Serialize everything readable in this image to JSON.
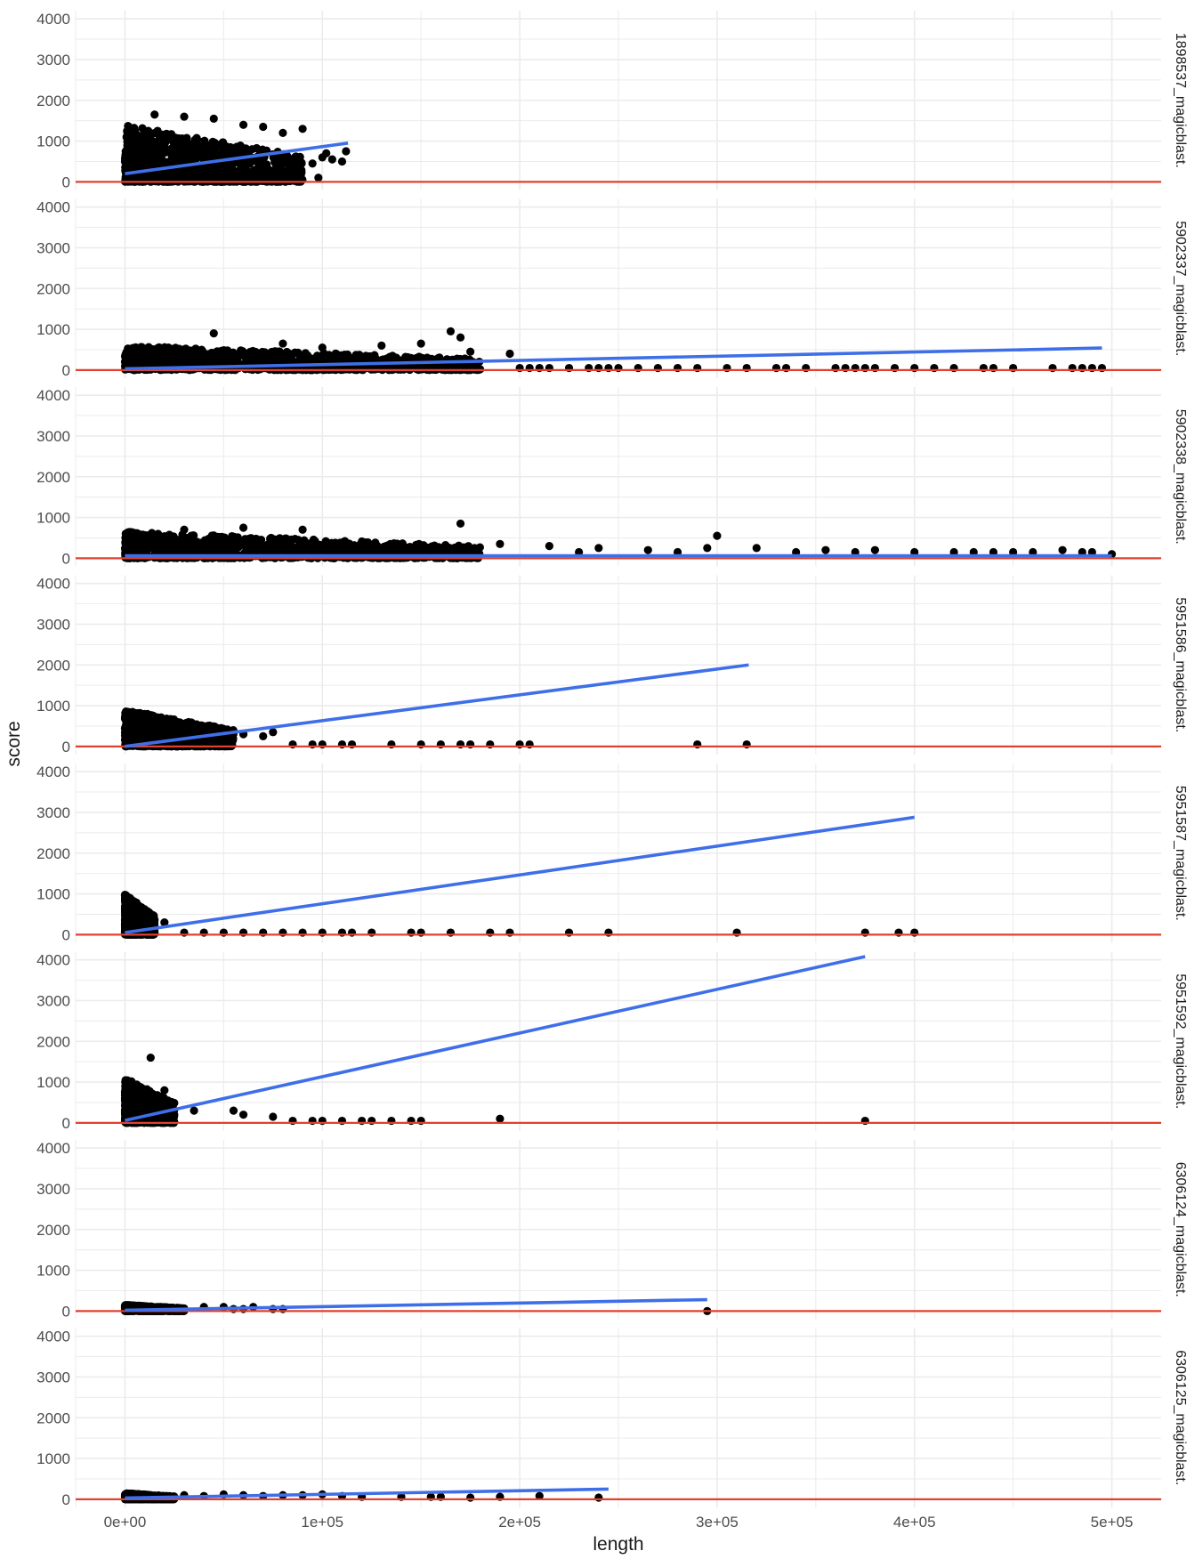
{
  "chart_data": {
    "type": "scatter",
    "xlabel": "length",
    "ylabel": "score",
    "xlim": [
      -25000,
      525000
    ],
    "ylim": [
      -200,
      4200
    ],
    "x_ticks": [
      0,
      100000,
      200000,
      300000,
      400000,
      500000
    ],
    "x_tick_labels": [
      "0e+00",
      "1e+05",
      "2e+05",
      "3e+05",
      "4e+05",
      "5e+05"
    ],
    "y_ticks": [
      0,
      1000,
      2000,
      3000,
      4000
    ],
    "y_tick_labels": [
      "0",
      "1000",
      "2000",
      "3000",
      "4000"
    ],
    "grid": true,
    "colors": {
      "points": "#000000",
      "fit_line": "#3f6fe8",
      "hline": "#e0412f",
      "grid": "#ebebeb"
    },
    "hline_y": 0,
    "panels": [
      {
        "label": "1898537_magicblast.",
        "dense_region": {
          "x": [
            0,
            90000
          ],
          "y": [
            0,
            1400
          ],
          "peak": 1600
        },
        "points": [
          [
            100000,
            600
          ],
          [
            105000,
            550
          ],
          [
            110000,
            500
          ],
          [
            112000,
            750
          ],
          [
            95000,
            450
          ],
          [
            90000,
            1300
          ],
          [
            80000,
            1200
          ],
          [
            70000,
            1350
          ],
          [
            60000,
            1400
          ],
          [
            45000,
            1550
          ],
          [
            30000,
            1600
          ],
          [
            15000,
            1650
          ],
          [
            5000,
            1250
          ],
          [
            98000,
            100
          ],
          [
            102000,
            700
          ]
        ],
        "fit": {
          "x": [
            0,
            113000
          ],
          "y": [
            200,
            950
          ]
        }
      },
      {
        "label": "5902337_magicblast.",
        "dense_region": {
          "x": [
            0,
            180000
          ],
          "y": [
            0,
            600
          ],
          "peak": 950
        },
        "points": [
          [
            45000,
            900
          ],
          [
            165000,
            950
          ],
          [
            170000,
            800
          ],
          [
            150000,
            650
          ],
          [
            130000,
            600
          ],
          [
            80000,
            650
          ],
          [
            100000,
            550
          ],
          [
            195000,
            400
          ],
          [
            175000,
            450
          ],
          [
            200000,
            50
          ],
          [
            205000,
            50
          ],
          [
            210000,
            50
          ],
          [
            215000,
            50
          ],
          [
            225000,
            50
          ],
          [
            235000,
            50
          ],
          [
            240000,
            50
          ],
          [
            245000,
            50
          ],
          [
            250000,
            50
          ],
          [
            260000,
            50
          ],
          [
            270000,
            50
          ],
          [
            280000,
            50
          ],
          [
            290000,
            50
          ],
          [
            305000,
            50
          ],
          [
            315000,
            50
          ],
          [
            330000,
            50
          ],
          [
            335000,
            50
          ],
          [
            345000,
            50
          ],
          [
            360000,
            50
          ],
          [
            365000,
            50
          ],
          [
            370000,
            50
          ],
          [
            375000,
            50
          ],
          [
            380000,
            50
          ],
          [
            390000,
            50
          ],
          [
            400000,
            50
          ],
          [
            410000,
            50
          ],
          [
            420000,
            50
          ],
          [
            435000,
            50
          ],
          [
            440000,
            50
          ],
          [
            450000,
            50
          ],
          [
            470000,
            50
          ],
          [
            480000,
            50
          ],
          [
            485000,
            50
          ],
          [
            490000,
            50
          ],
          [
            495000,
            50
          ]
        ],
        "fit": {
          "x": [
            0,
            495000
          ],
          "y": [
            30,
            540
          ]
        }
      },
      {
        "label": "5902338_magicblast.",
        "dense_region": {
          "x": [
            0,
            180000
          ],
          "y": [
            0,
            650
          ],
          "peak": 850
        },
        "points": [
          [
            170000,
            850
          ],
          [
            60000,
            750
          ],
          [
            90000,
            700
          ],
          [
            30000,
            700
          ],
          [
            300000,
            550
          ],
          [
            190000,
            350
          ],
          [
            215000,
            300
          ],
          [
            240000,
            250
          ],
          [
            265000,
            200
          ],
          [
            295000,
            250
          ],
          [
            320000,
            250
          ],
          [
            355000,
            200
          ],
          [
            380000,
            200
          ],
          [
            400000,
            150
          ],
          [
            420000,
            150
          ],
          [
            440000,
            150
          ],
          [
            460000,
            150
          ],
          [
            475000,
            200
          ],
          [
            490000,
            150
          ],
          [
            500000,
            100
          ],
          [
            230000,
            150
          ],
          [
            280000,
            150
          ],
          [
            340000,
            150
          ],
          [
            370000,
            150
          ],
          [
            430000,
            150
          ],
          [
            450000,
            150
          ],
          [
            485000,
            150
          ]
        ],
        "fit": {
          "x": [
            0,
            500000
          ],
          "y": [
            60,
            60
          ]
        }
      },
      {
        "label": "5951586_magicblast.",
        "dense_region": {
          "x": [
            0,
            55000
          ],
          "y": [
            0,
            900
          ],
          "peak": 950
        },
        "points": [
          [
            60000,
            300
          ],
          [
            70000,
            250
          ],
          [
            75000,
            350
          ],
          [
            85000,
            50
          ],
          [
            95000,
            50
          ],
          [
            100000,
            50
          ],
          [
            110000,
            50
          ],
          [
            115000,
            50
          ],
          [
            135000,
            50
          ],
          [
            150000,
            50
          ],
          [
            160000,
            50
          ],
          [
            170000,
            50
          ],
          [
            175000,
            50
          ],
          [
            185000,
            50
          ],
          [
            200000,
            50
          ],
          [
            205000,
            50
          ],
          [
            290000,
            50
          ],
          [
            315000,
            50
          ]
        ],
        "fit": {
          "x": [
            0,
            316000
          ],
          "y": [
            0,
            2000
          ]
        }
      },
      {
        "label": "5951587_magicblast.",
        "dense_region": {
          "x": [
            0,
            15000
          ],
          "y": [
            0,
            1000
          ],
          "peak": 1200
        },
        "points": [
          [
            20000,
            300
          ],
          [
            30000,
            50
          ],
          [
            40000,
            50
          ],
          [
            50000,
            50
          ],
          [
            60000,
            50
          ],
          [
            70000,
            50
          ],
          [
            80000,
            50
          ],
          [
            90000,
            50
          ],
          [
            100000,
            50
          ],
          [
            110000,
            50
          ],
          [
            115000,
            50
          ],
          [
            125000,
            50
          ],
          [
            145000,
            50
          ],
          [
            150000,
            50
          ],
          [
            165000,
            50
          ],
          [
            185000,
            50
          ],
          [
            195000,
            50
          ],
          [
            225000,
            50
          ],
          [
            245000,
            50
          ],
          [
            310000,
            50
          ],
          [
            375000,
            50
          ],
          [
            392000,
            50
          ],
          [
            400000,
            50
          ]
        ],
        "fit": {
          "x": [
            0,
            400000
          ],
          "y": [
            50,
            2880
          ]
        }
      },
      {
        "label": "5951592_magicblast.",
        "dense_region": {
          "x": [
            0,
            25000
          ],
          "y": [
            0,
            1100
          ],
          "peak": 1600
        },
        "points": [
          [
            13000,
            1600
          ],
          [
            20000,
            800
          ],
          [
            35000,
            300
          ],
          [
            55000,
            300
          ],
          [
            60000,
            200
          ],
          [
            75000,
            150
          ],
          [
            85000,
            50
          ],
          [
            95000,
            50
          ],
          [
            100000,
            50
          ],
          [
            110000,
            50
          ],
          [
            120000,
            50
          ],
          [
            125000,
            50
          ],
          [
            135000,
            50
          ],
          [
            145000,
            50
          ],
          [
            150000,
            50
          ],
          [
            190000,
            100
          ],
          [
            375000,
            50
          ]
        ],
        "fit": {
          "x": [
            0,
            375000
          ],
          "y": [
            60,
            4080
          ]
        }
      },
      {
        "label": "6306124_magicblast.",
        "dense_region": {
          "x": [
            0,
            30000
          ],
          "y": [
            0,
            150
          ],
          "peak": 150
        },
        "points": [
          [
            40000,
            100
          ],
          [
            50000,
            100
          ],
          [
            55000,
            50
          ],
          [
            60000,
            50
          ],
          [
            65000,
            100
          ],
          [
            75000,
            50
          ],
          [
            80000,
            50
          ],
          [
            295000,
            0
          ]
        ],
        "fit": {
          "x": [
            0,
            295000
          ],
          "y": [
            20,
            280
          ]
        }
      },
      {
        "label": "6306125_magicblast.",
        "dense_region": {
          "x": [
            0,
            25000
          ],
          "y": [
            0,
            150
          ],
          "peak": 150
        },
        "points": [
          [
            30000,
            100
          ],
          [
            40000,
            80
          ],
          [
            50000,
            120
          ],
          [
            60000,
            100
          ],
          [
            70000,
            80
          ],
          [
            80000,
            100
          ],
          [
            90000,
            100
          ],
          [
            100000,
            120
          ],
          [
            110000,
            80
          ],
          [
            120000,
            60
          ],
          [
            140000,
            60
          ],
          [
            155000,
            60
          ],
          [
            160000,
            60
          ],
          [
            175000,
            40
          ],
          [
            190000,
            60
          ],
          [
            210000,
            80
          ],
          [
            240000,
            40
          ]
        ],
        "fit": {
          "x": [
            0,
            245000
          ],
          "y": [
            30,
            250
          ]
        }
      }
    ]
  }
}
